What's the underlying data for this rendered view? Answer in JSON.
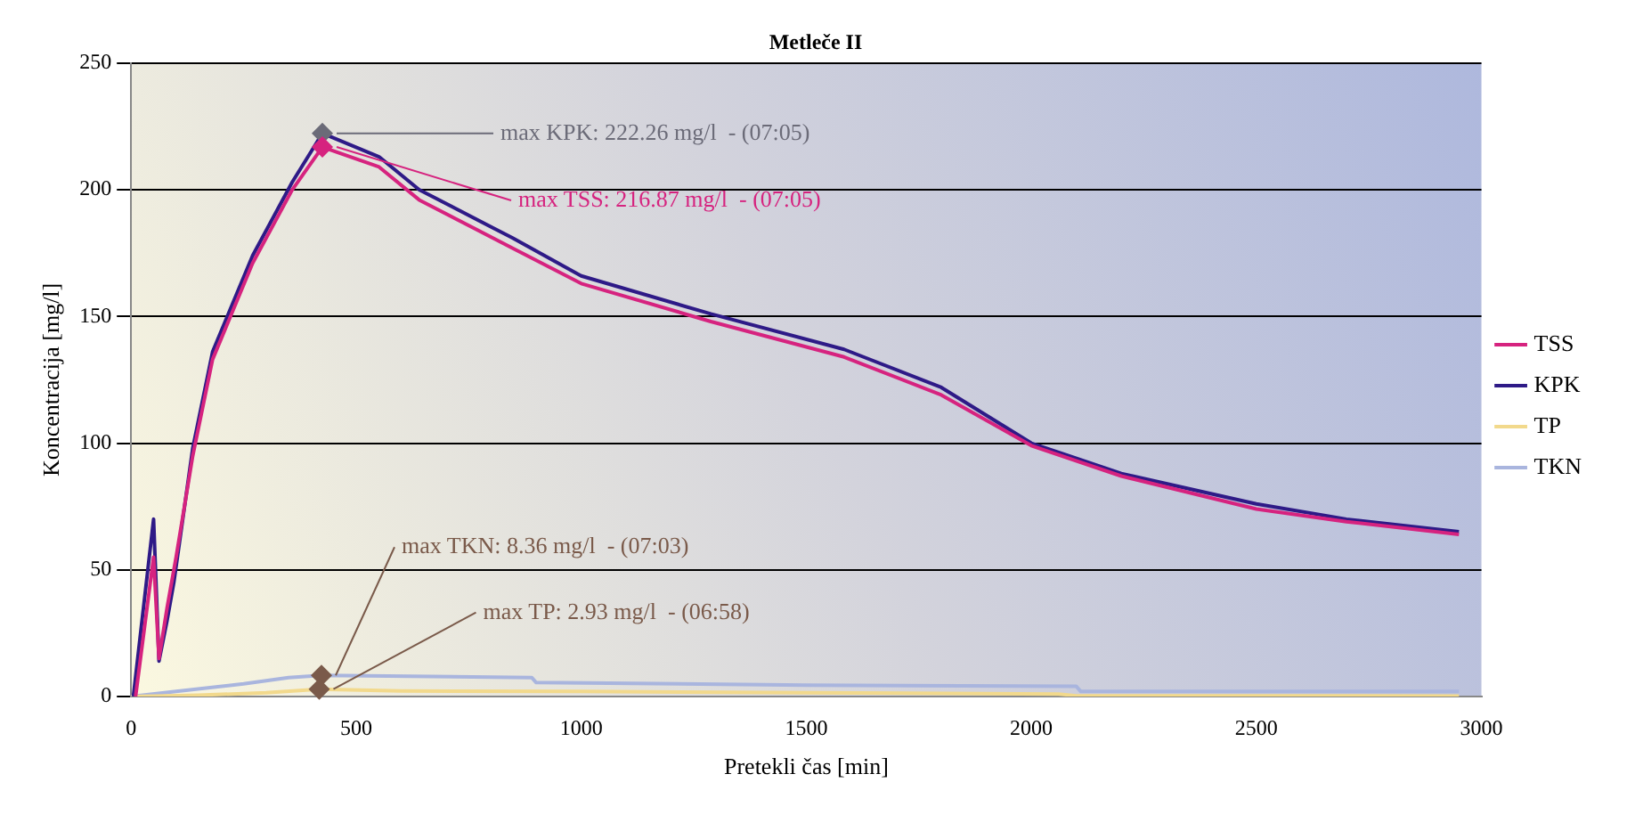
{
  "chart_data": {
    "type": "line",
    "title": "Metleče II",
    "xlabel": "Pretekli čas [min]",
    "ylabel": "Koncentracija [mg/l]",
    "xlim": [
      0,
      3000
    ],
    "xticks": [
      0,
      500,
      1000,
      1500,
      2000,
      2500,
      3000
    ],
    "ylim": [
      0,
      250
    ],
    "yticks": [
      0,
      50,
      100,
      150,
      200,
      250
    ],
    "grid": "y",
    "legend": "right",
    "line_style": "solid",
    "series": [
      {
        "name": "TSS",
        "color": "#d6237f",
        "x": [
          10,
          50,
          62,
          80,
          100,
          137,
          181,
          270,
          358,
          425,
          551,
          640,
          847,
          1000,
          1288,
          1584,
          1800,
          2000,
          2200,
          2500,
          2700,
          2950
        ],
        "values": [
          0,
          55,
          15,
          35,
          55,
          95,
          133,
          171,
          200,
          216.87,
          209,
          196,
          177,
          163,
          148,
          134,
          119,
          99,
          87,
          74,
          69,
          64
        ]
      },
      {
        "name": "KPK",
        "color": "#2e1a87",
        "x": [
          5,
          50,
          62,
          80,
          95,
          137,
          181,
          270,
          358,
          425,
          551,
          640,
          847,
          1000,
          1288,
          1584,
          1800,
          2000,
          2200,
          2500,
          2700,
          2950
        ],
        "values": [
          0,
          70,
          14,
          30,
          45,
          98,
          136,
          174,
          203,
          222.26,
          213,
          200,
          181,
          166,
          151,
          137,
          122,
          100,
          88,
          76,
          70,
          65
        ]
      },
      {
        "name": "TP",
        "color": "#f2d98c",
        "x": [
          0,
          150,
          300,
          418,
          600,
          1000,
          1500,
          2060,
          2100,
          2950
        ],
        "values": [
          0,
          0.5,
          1.5,
          2.93,
          2.2,
          2,
          1.5,
          1,
          0.3,
          0.2
        ]
      },
      {
        "name": "TKN",
        "color": "#a9b5de",
        "x": [
          0,
          100,
          250,
          350,
          423,
          890,
          900,
          1500,
          2100,
          2110,
          2950
        ],
        "values": [
          0,
          2,
          5,
          7.5,
          8.36,
          7.5,
          5.5,
          4.5,
          4,
          2,
          2
        ]
      }
    ],
    "annotations": [
      {
        "text": "max KPK: 222.26 mg/l  - (07:05)",
        "x": 425,
        "y": 222.26
      },
      {
        "text": "max TSS: 216.87 mg/l  - (07:05)",
        "x": 425,
        "y": 216.87
      },
      {
        "text": "max TKN: 8.36 mg/l  - (07:03)",
        "x": 423,
        "y": 8.36
      },
      {
        "text": "max TP: 2.93 mg/l  - (06:58)",
        "x": 418,
        "y": 2.93
      }
    ]
  }
}
